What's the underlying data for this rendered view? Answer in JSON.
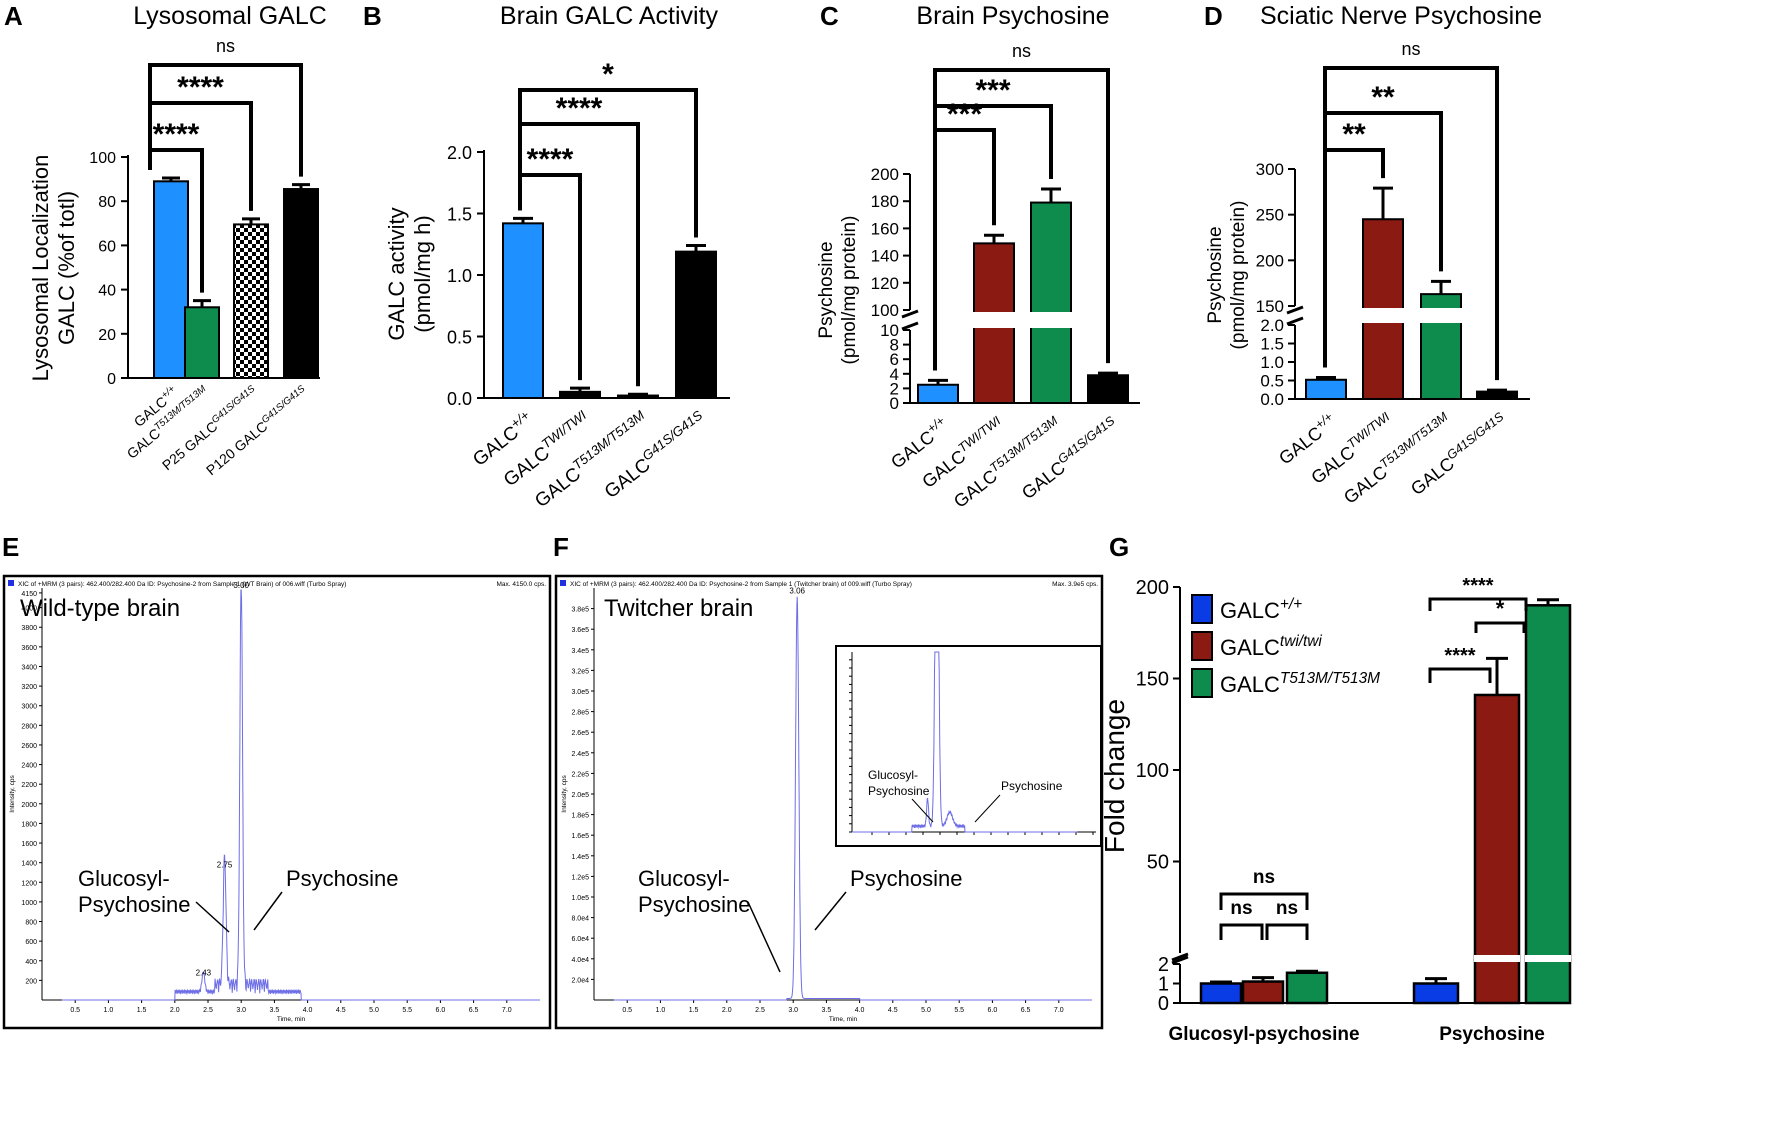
{
  "colors": {
    "blue": "#1E90FF",
    "green": "#0E8C4E",
    "black": "#000000",
    "darkred": "#8B1A12",
    "gblue": "#0A3CE6",
    "trace": "#6E6EE6"
  },
  "chart_data": [
    {
      "id": "A",
      "type": "bar",
      "letter": "A",
      "title": "Lysosomal GALC",
      "ylabel": [
        "Lysosomal Localization",
        "GALC (%of totl)"
      ],
      "ylim": [
        0,
        100
      ],
      "yticks": [
        0,
        20,
        40,
        60,
        80,
        100
      ],
      "categories": [
        {
          "base": "GALC",
          "sup": "+/+"
        },
        {
          "base": "GALC",
          "sup": "T513M/T513M"
        },
        {
          "base": "P25 GALC",
          "sup": "G41S/G41S"
        },
        {
          "base": "P120 GALC",
          "sup": "G41S/G41S"
        }
      ],
      "values": [
        89,
        32,
        69.5,
        85.5
      ],
      "errors": [
        1.5,
        3,
        2.5,
        2
      ],
      "fills": [
        "blue",
        "green",
        "checker",
        "black"
      ],
      "significance": [
        {
          "from": 0,
          "to": 1,
          "label": "****"
        },
        {
          "from": 0,
          "to": 2,
          "label": "****"
        },
        {
          "from": 0,
          "to": 3,
          "label": "ns"
        }
      ]
    },
    {
      "id": "B",
      "type": "bar",
      "letter": "B",
      "title": "Brain GALC Activity",
      "ylabel": [
        "GALC activity",
        "(pmol/mg h)"
      ],
      "ylim": [
        0,
        2.0
      ],
      "yticks": [
        "0.0",
        "0.5",
        "1.0",
        "1.5",
        "2.0"
      ],
      "categories": [
        {
          "base": "GALC",
          "sup": "+/+"
        },
        {
          "base": "GALC",
          "sup": "TWI/TWI"
        },
        {
          "base": "GALC",
          "sup": "T513M/T513M"
        },
        {
          "base": "GALC",
          "sup": "G41S/G41S"
        }
      ],
      "values": [
        1.42,
        0.05,
        0.02,
        1.19
      ],
      "errors": [
        0.04,
        0.03,
        0.01,
        0.05
      ],
      "fills": [
        "blue",
        "black",
        "black",
        "black"
      ],
      "significance": [
        {
          "from": 0,
          "to": 1,
          "label": "****"
        },
        {
          "from": 0,
          "to": 2,
          "label": "****"
        },
        {
          "from": 0,
          "to": 3,
          "label": "*"
        }
      ]
    },
    {
      "id": "C",
      "type": "bar",
      "letter": "C",
      "title": "Brain Psychosine",
      "ylabel": [
        "Psychosine",
        "(pmol/mg protein)"
      ],
      "axis_break": {
        "lower": [
          0,
          10
        ],
        "upper": [
          100,
          200
        ]
      },
      "yticks_lower": [
        0,
        2,
        4,
        6,
        8,
        10
      ],
      "yticks_upper": [
        100,
        120,
        140,
        160,
        180,
        200
      ],
      "categories": [
        {
          "base": "GALC",
          "sup": "+/+"
        },
        {
          "base": "GALC",
          "sup": "TWI/TWI"
        },
        {
          "base": "GALC",
          "sup": "T513M/T513M"
        },
        {
          "base": "GALC",
          "sup": "G41S/G41S"
        }
      ],
      "values": [
        2.5,
        149,
        179,
        3.8
      ],
      "errors": [
        0.6,
        6,
        10,
        0.3
      ],
      "fills": [
        "blue",
        "darkred",
        "green",
        "black"
      ],
      "significance": [
        {
          "from": 0,
          "to": 1,
          "label": "***"
        },
        {
          "from": 0,
          "to": 2,
          "label": "***"
        },
        {
          "from": 0,
          "to": 3,
          "label": "ns"
        }
      ]
    },
    {
      "id": "D",
      "type": "bar",
      "letter": "D",
      "title": "Sciatic Nerve Psychosine",
      "ylabel": [
        "Psychosine",
        "(pmol/mg protein)"
      ],
      "axis_break": {
        "lower": [
          0,
          2.0
        ],
        "upper": [
          150,
          300
        ]
      },
      "yticks_lower": [
        "0.0",
        "0.5",
        "1.0",
        "1.5",
        "2.0"
      ],
      "yticks_upper": [
        "150",
        "200",
        "250",
        "300"
      ],
      "categories": [
        {
          "base": "GALC",
          "sup": "+/+"
        },
        {
          "base": "GALC",
          "sup": "TWI/TWI"
        },
        {
          "base": "GALC",
          "sup": "T513M/T513M"
        },
        {
          "base": "GALC",
          "sup": "G41S/G41S"
        }
      ],
      "values": [
        0.52,
        245,
        163,
        0.2
      ],
      "errors": [
        0.06,
        34,
        14,
        0.04
      ],
      "fills": [
        "blue",
        "darkred",
        "green",
        "black"
      ],
      "significance": [
        {
          "from": 0,
          "to": 1,
          "label": "**"
        },
        {
          "from": 0,
          "to": 2,
          "label": "**"
        },
        {
          "from": 0,
          "to": 3,
          "label": "ns"
        }
      ]
    },
    {
      "id": "E",
      "type": "line",
      "letter": "E",
      "header": "XIC of +MRM (3 pairs): 462.400/282.400 Da ID: Psychosine-2 from Sample 1 (WT Brain) of 006.wiff (Turbo Spray)",
      "max_label": "Max. 4150.0 cps.",
      "annotation": "Wild-type brain",
      "ylabel": "Intensity, cps",
      "xlabel": "Time, min",
      "xticks": [
        "0.5",
        "1.0",
        "1.5",
        "2.0",
        "2.5",
        "3.0",
        "3.5",
        "4.0",
        "4.5",
        "5.0",
        "5.5",
        "6.0",
        "6.5",
        "7.0"
      ],
      "yticks": [
        "200",
        "400",
        "600",
        "800",
        "1000",
        "1200",
        "1400",
        "1600",
        "1800",
        "2000",
        "2200",
        "2400",
        "2600",
        "2800",
        "3000",
        "3200",
        "3400",
        "3600",
        "3800",
        "4000",
        "4150"
      ],
      "xlim": [
        0,
        7.5
      ],
      "ylim": [
        0,
        4200
      ],
      "peaks": [
        {
          "x": 2.43,
          "y": 200,
          "label": "2.43"
        },
        {
          "x": 2.75,
          "y": 1300,
          "label": "2.75"
        },
        {
          "x": 3.0,
          "y": 4150,
          "label": "3.00"
        }
      ],
      "labels": {
        "gp1": "Glucosyl-",
        "gp2": "Psychosine",
        "psy": "Psychosine"
      }
    },
    {
      "id": "F",
      "type": "line",
      "letter": "F",
      "header": "XIC of +MRM (3 pairs): 462.400/282.400 Da ID: Psychosine-2 from Sample 1 (Twitcher brain) of 009.wiff (Turbo Spray)",
      "max_label": "Max. 3.9e5 cps.",
      "annotation": "Twitcher brain",
      "ylabel": "Intensity, cps",
      "xlabel": "Time, min",
      "xticks": [
        "0.5",
        "1.0",
        "1.5",
        "2.0",
        "2.5",
        "3.0",
        "3.5",
        "4.0",
        "4.5",
        "5.0",
        "5.5",
        "6.0",
        "6.5",
        "7.0"
      ],
      "yticks": [
        "2.0e4",
        "4.0e4",
        "6.0e4",
        "8.0e4",
        "1.0e5",
        "1.2e5",
        "1.4e5",
        "1.6e5",
        "1.8e5",
        "2.0e5",
        "2.2e5",
        "2.4e5",
        "2.6e5",
        "2.8e5",
        "3.0e5",
        "3.2e5",
        "3.4e5",
        "3.6e5",
        "3.8e5"
      ],
      "xlim": [
        0,
        7.5
      ],
      "ylim": [
        0,
        400000
      ],
      "peaks": [
        {
          "x": 3.06,
          "y": 390000,
          "label": "3.06"
        }
      ],
      "labels": {
        "gp1": "Glucosyl-",
        "gp2": "Psychosine",
        "psy": "Psychosine"
      },
      "inset_labels": {
        "gp1": "Glucosyl-",
        "gp2": "Psychosine",
        "psy": "Psychosine"
      }
    },
    {
      "id": "G",
      "type": "bar",
      "letter": "G",
      "ylabel": "Fold change",
      "axis_break": {
        "lower": [
          0,
          2
        ],
        "upper": [
          0,
          200
        ]
      },
      "yticks_lower": [
        0,
        1,
        2
      ],
      "yticks_upper": [
        50,
        100,
        150,
        200
      ],
      "groups": [
        "Glucosyl-psychosine",
        "Psychosine"
      ],
      "series": [
        {
          "name": {
            "base": "GALC",
            "sup": "+/+"
          },
          "color": "gblue",
          "values": [
            1.0,
            1.0
          ],
          "errors": [
            0.08,
            0.25
          ]
        },
        {
          "name": {
            "base": "GALC",
            "sup": "twi/twi"
          },
          "color": "darkred",
          "values": [
            1.1,
            141
          ],
          "errors": [
            0.2,
            20
          ]
        },
        {
          "name": {
            "base": "GALC",
            "sup": "T513M/T513M"
          },
          "color": "green",
          "values": [
            1.55,
            190
          ],
          "errors": [
            0.08,
            3
          ]
        }
      ],
      "significance": [
        {
          "group": 0,
          "from": 0,
          "to": 1,
          "label": "ns"
        },
        {
          "group": 0,
          "from": 1,
          "to": 2,
          "label": "ns"
        },
        {
          "group": 0,
          "from": 0,
          "to": 2,
          "label": "ns"
        },
        {
          "group": 1,
          "from": 0,
          "to": 1,
          "label": "****"
        },
        {
          "group": 1,
          "from": 1,
          "to": 2,
          "label": "*"
        },
        {
          "group": 1,
          "from": 0,
          "to": 2,
          "label": "****"
        }
      ]
    }
  ]
}
